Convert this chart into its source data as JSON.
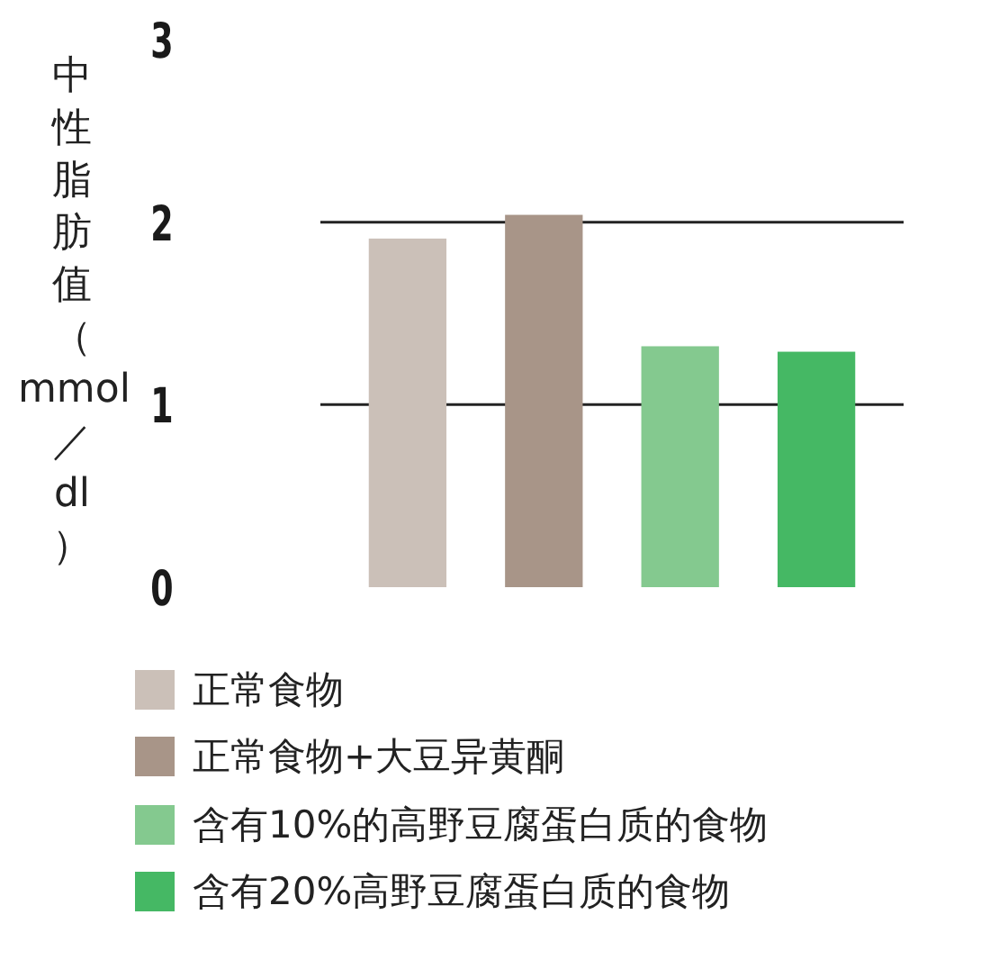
{
  "chart_data": {
    "type": "bar",
    "ylabel": "中性脂肪值（mmol／dl）",
    "categories": [
      null
    ],
    "series": [
      {
        "name": "正常食物",
        "color": "#cbc0b8",
        "values": [
          1.91
        ]
      },
      {
        "name": "正常食物+大豆异黄酮",
        "color": "#a89588",
        "values": [
          2.04
        ]
      },
      {
        "name": "含有10%的高野豆腐蛋白质的食物",
        "color": "#84c98f",
        "values": [
          1.32
        ]
      },
      {
        "name": "含有20%高野豆腐蛋白质的食物",
        "color": "#45b864",
        "values": [
          1.29
        ]
      }
    ],
    "ylim": [
      0,
      3
    ],
    "yticks": [
      0,
      1,
      2,
      3
    ],
    "grid": "y",
    "legend": "bottom"
  }
}
